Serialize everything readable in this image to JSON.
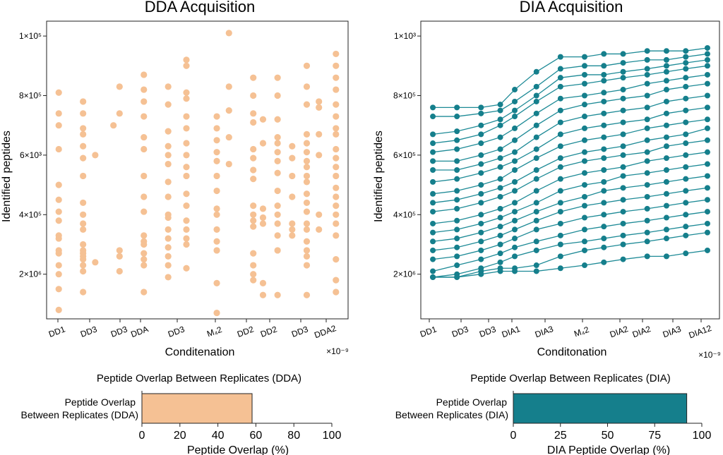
{
  "colors": {
    "dda": "#f5c194",
    "dia": "#157f8c",
    "dia_line": "#1d8a96",
    "axis": "#222222"
  },
  "chart_data": [
    {
      "type": "scatter",
      "title": "DDA Acquisition",
      "xlabel": "Conditenation",
      "ylabel": "Identified peptides",
      "x_offset_label": "×10⁻⁹",
      "categories": [
        "DD1",
        "DD3",
        "DD3",
        "DDA",
        "DD3",
        "M₄2",
        "DD2",
        "DD2",
        "DD3",
        "DDA2"
      ],
      "ytick_labels": [
        "2×10⁶",
        "4×10⁵",
        "6×10³",
        "8×10⁵",
        "1×10⁵"
      ],
      "ytick_values": [
        2,
        4,
        6,
        8,
        10
      ],
      "ylim": [
        0.5,
        10.5
      ],
      "grid": false,
      "points": [
        [
          0.5,
          8.1
        ],
        [
          0.5,
          7.4
        ],
        [
          0.5,
          7.0
        ],
        [
          0.5,
          6.2
        ],
        [
          0.5,
          5.0
        ],
        [
          0.5,
          4.5
        ],
        [
          0.5,
          4.1
        ],
        [
          0.5,
          3.8
        ],
        [
          0.5,
          3.3
        ],
        [
          0.5,
          3.2
        ],
        [
          0.5,
          2.8
        ],
        [
          0.5,
          2.7
        ],
        [
          0.5,
          2.3
        ],
        [
          0.5,
          2.0
        ],
        [
          0.5,
          1.5
        ],
        [
          0.5,
          0.8
        ],
        [
          1.5,
          7.8
        ],
        [
          1.5,
          7.4
        ],
        [
          1.5,
          6.9
        ],
        [
          1.5,
          6.7
        ],
        [
          1.5,
          6.3
        ],
        [
          1.5,
          5.9
        ],
        [
          1.5,
          5.3
        ],
        [
          1.5,
          4.4
        ],
        [
          1.5,
          4.0
        ],
        [
          1.5,
          3.7
        ],
        [
          1.5,
          3.5
        ],
        [
          1.5,
          3.0
        ],
        [
          1.5,
          2.8
        ],
        [
          1.5,
          2.7
        ],
        [
          1.5,
          2.6
        ],
        [
          1.5,
          2.5
        ],
        [
          1.5,
          2.3
        ],
        [
          1.5,
          2.1
        ],
        [
          1.5,
          1.4
        ],
        [
          2.0,
          6.0
        ],
        [
          2.0,
          2.4
        ],
        [
          2.75,
          7.0
        ],
        [
          3.0,
          8.3
        ],
        [
          3.0,
          7.4
        ],
        [
          3.0,
          2.8
        ],
        [
          3.0,
          2.6
        ],
        [
          3.0,
          2.1
        ],
        [
          4.0,
          8.7
        ],
        [
          4.0,
          8.2
        ],
        [
          4.0,
          7.8
        ],
        [
          4.0,
          7.3
        ],
        [
          4.0,
          6.6
        ],
        [
          4.0,
          6.2
        ],
        [
          4.0,
          5.3
        ],
        [
          4.0,
          4.6
        ],
        [
          4.0,
          4.1
        ],
        [
          4.0,
          3.3
        ],
        [
          4.0,
          3.1
        ],
        [
          4.0,
          3.0
        ],
        [
          4.0,
          2.7
        ],
        [
          4.0,
          2.5
        ],
        [
          4.0,
          2.3
        ],
        [
          4.0,
          1.4
        ],
        [
          5.0,
          8.3
        ],
        [
          5.0,
          7.7
        ],
        [
          5.0,
          6.8
        ],
        [
          5.0,
          6.3
        ],
        [
          5.0,
          6.0
        ],
        [
          5.0,
          5.7
        ],
        [
          5.0,
          5.1
        ],
        [
          5.0,
          4.6
        ],
        [
          5.0,
          4.0
        ],
        [
          5.0,
          3.9
        ],
        [
          5.0,
          3.5
        ],
        [
          5.0,
          3.2
        ],
        [
          5.0,
          2.9
        ],
        [
          5.0,
          2.6
        ],
        [
          5.0,
          2.3
        ],
        [
          5.0,
          1.9
        ],
        [
          5.75,
          9.2
        ],
        [
          5.75,
          9.0
        ],
        [
          5.75,
          8.1
        ],
        [
          5.75,
          7.9
        ],
        [
          5.75,
          7.3
        ],
        [
          5.75,
          6.9
        ],
        [
          5.75,
          6.4
        ],
        [
          5.75,
          6.0
        ],
        [
          5.75,
          5.6
        ],
        [
          5.75,
          5.3
        ],
        [
          5.75,
          4.7
        ],
        [
          5.75,
          4.3
        ],
        [
          5.75,
          3.8
        ],
        [
          5.75,
          3.5
        ],
        [
          5.75,
          3.2
        ],
        [
          5.75,
          3.0
        ],
        [
          5.75,
          2.2
        ],
        [
          7.0,
          7.3
        ],
        [
          7.0,
          6.9
        ],
        [
          7.0,
          6.5
        ],
        [
          7.0,
          6.1
        ],
        [
          7.0,
          5.8
        ],
        [
          7.0,
          5.3
        ],
        [
          7.0,
          4.8
        ],
        [
          7.0,
          4.2
        ],
        [
          7.0,
          4.0
        ],
        [
          7.0,
          3.5
        ],
        [
          7.0,
          3.1
        ],
        [
          7.0,
          2.8
        ],
        [
          7.0,
          1.7
        ],
        [
          7.0,
          0.7
        ],
        [
          7.5,
          10.1
        ],
        [
          7.5,
          8.3
        ],
        [
          7.5,
          7.5
        ],
        [
          7.5,
          6.6
        ],
        [
          7.5,
          5.7
        ],
        [
          8.5,
          8.6
        ],
        [
          8.5,
          8.0
        ],
        [
          8.5,
          7.4
        ],
        [
          8.5,
          7.1
        ],
        [
          8.5,
          6.2
        ],
        [
          8.5,
          5.9
        ],
        [
          8.5,
          5.5
        ],
        [
          8.5,
          5.2
        ],
        [
          8.5,
          4.3
        ],
        [
          8.5,
          4.0
        ],
        [
          8.5,
          3.8
        ],
        [
          8.5,
          3.6
        ],
        [
          8.5,
          2.7
        ],
        [
          8.5,
          2.3
        ],
        [
          8.5,
          2.0
        ],
        [
          8.5,
          1.8
        ],
        [
          8.9,
          7.2
        ],
        [
          8.9,
          6.4
        ],
        [
          8.9,
          4.2
        ],
        [
          8.9,
          3.9
        ],
        [
          8.9,
          3.7
        ],
        [
          8.9,
          1.7
        ],
        [
          8.9,
          1.3
        ],
        [
          9.5,
          8.6
        ],
        [
          9.5,
          8.0
        ],
        [
          9.5,
          7.2
        ],
        [
          9.5,
          6.6
        ],
        [
          9.5,
          6.4
        ],
        [
          9.5,
          6.1
        ],
        [
          9.5,
          5.8
        ],
        [
          9.5,
          5.4
        ],
        [
          9.5,
          4.8
        ],
        [
          9.5,
          4.3
        ],
        [
          9.5,
          4.0
        ],
        [
          9.5,
          3.7
        ],
        [
          9.5,
          3.3
        ],
        [
          9.5,
          2.8
        ],
        [
          9.5,
          1.3
        ],
        [
          10.1,
          6.3
        ],
        [
          10.1,
          5.9
        ],
        [
          10.1,
          5.3
        ],
        [
          10.1,
          4.6
        ],
        [
          10.1,
          3.7
        ],
        [
          10.1,
          3.5
        ],
        [
          10.1,
          3.3
        ],
        [
          10.7,
          9.0
        ],
        [
          10.7,
          8.3
        ],
        [
          10.7,
          7.7
        ],
        [
          10.7,
          6.7
        ],
        [
          10.7,
          6.4
        ],
        [
          10.7,
          6.1
        ],
        [
          10.7,
          5.8
        ],
        [
          10.7,
          5.6
        ],
        [
          10.7,
          5.3
        ],
        [
          10.7,
          5.1
        ],
        [
          10.7,
          4.7
        ],
        [
          10.7,
          4.4
        ],
        [
          10.7,
          4.1
        ],
        [
          10.7,
          3.7
        ],
        [
          10.7,
          3.5
        ],
        [
          10.7,
          3.1
        ],
        [
          10.7,
          2.8
        ],
        [
          10.7,
          2.6
        ],
        [
          10.7,
          2.3
        ],
        [
          10.7,
          1.3
        ],
        [
          11.2,
          7.8
        ],
        [
          11.2,
          7.6
        ],
        [
          11.2,
          6.7
        ],
        [
          11.2,
          6.0
        ],
        [
          11.2,
          4.0
        ],
        [
          11.2,
          3.5
        ],
        [
          11.9,
          9.4
        ],
        [
          11.9,
          9.0
        ],
        [
          11.9,
          8.6
        ],
        [
          11.9,
          8.2
        ],
        [
          11.9,
          7.7
        ],
        [
          11.9,
          7.3
        ],
        [
          11.9,
          6.9
        ],
        [
          11.9,
          6.7
        ],
        [
          11.9,
          6.2
        ],
        [
          11.9,
          5.9
        ],
        [
          11.9,
          5.6
        ],
        [
          11.9,
          5.3
        ],
        [
          11.9,
          4.9
        ],
        [
          11.9,
          4.6
        ],
        [
          11.9,
          4.3
        ],
        [
          11.9,
          4.0
        ],
        [
          11.9,
          3.7
        ],
        [
          11.9,
          3.3
        ],
        [
          11.9,
          2.5
        ],
        [
          11.9,
          1.8
        ],
        [
          11.9,
          1.4
        ]
      ]
    },
    {
      "type": "line",
      "title": "DIA Acquisition",
      "xlabel": "Conditonation",
      "ylabel": "Identified peptides",
      "x_offset_label": "×10⁻⁹",
      "categories": [
        "DD1",
        "DD3",
        "DD3",
        "DIA1",
        "DIA3",
        "M₄2",
        "DIA2",
        "DIA2",
        "DIA3",
        "DIA12"
      ],
      "ytick_labels": [
        "2×10⁶",
        "4×10⁵",
        "6×10⁵",
        "8×10⁵",
        "1×10³"
      ],
      "ytick_values": [
        2,
        4,
        6,
        8,
        10
      ],
      "ylim": [
        0.5,
        10.5
      ],
      "grid": false,
      "x": [
        0.5,
        1.5,
        2.5,
        3.3,
        3.9,
        4.8,
        5.8,
        6.8,
        7.6,
        8.4,
        9.4,
        10.2,
        11.0,
        11.9
      ],
      "series": [
        {
          "values": [
            7.6,
            7.6,
            7.6,
            7.7,
            8.2,
            8.8,
            9.3,
            9.3,
            9.4,
            9.4,
            9.5,
            9.5,
            9.5,
            9.6
          ]
        },
        {
          "values": [
            7.3,
            7.3,
            7.4,
            7.5,
            7.8,
            8.3,
            8.9,
            9.0,
            9.0,
            9.1,
            9.2,
            9.2,
            9.3,
            9.4
          ]
        },
        {
          "values": [
            6.7,
            6.8,
            7.0,
            7.2,
            7.5,
            8.0,
            8.6,
            8.7,
            8.7,
            8.8,
            8.9,
            9.0,
            9.1,
            9.2
          ]
        },
        {
          "values": [
            6.4,
            6.5,
            6.7,
            7.0,
            7.3,
            7.8,
            8.3,
            8.4,
            8.5,
            8.6,
            8.7,
            8.8,
            8.9,
            9.0
          ]
        },
        {
          "values": [
            6.1,
            6.2,
            6.4,
            6.6,
            6.9,
            7.4,
            7.9,
            8.0,
            8.1,
            8.2,
            8.4,
            8.5,
            8.6,
            8.7
          ]
        },
        {
          "values": [
            5.8,
            5.8,
            6.0,
            6.2,
            6.5,
            7.0,
            7.5,
            7.7,
            7.8,
            7.9,
            8.0,
            8.2,
            8.3,
            8.4
          ]
        },
        {
          "values": [
            5.5,
            5.5,
            5.7,
            5.9,
            6.1,
            6.6,
            7.1,
            7.3,
            7.4,
            7.5,
            7.6,
            7.8,
            7.9,
            8.0
          ]
        },
        {
          "values": [
            5.1,
            5.2,
            5.4,
            5.6,
            5.8,
            6.2,
            6.7,
            6.9,
            7.0,
            7.1,
            7.2,
            7.4,
            7.5,
            7.6
          ]
        },
        {
          "values": [
            4.7,
            4.8,
            5.0,
            5.2,
            5.5,
            5.9,
            6.3,
            6.5,
            6.6,
            6.7,
            6.9,
            7.0,
            7.1,
            7.2
          ]
        },
        {
          "values": [
            4.4,
            4.5,
            4.7,
            4.9,
            5.1,
            5.5,
            5.9,
            6.1,
            6.2,
            6.3,
            6.5,
            6.6,
            6.7,
            6.9
          ]
        },
        {
          "values": [
            4.1,
            4.2,
            4.4,
            4.6,
            4.8,
            5.2,
            5.6,
            5.8,
            5.9,
            6.0,
            6.1,
            6.3,
            6.4,
            6.5
          ]
        },
        {
          "values": [
            3.7,
            3.8,
            4.0,
            4.2,
            4.4,
            4.8,
            5.2,
            5.4,
            5.5,
            5.6,
            5.8,
            5.9,
            6.0,
            6.1
          ]
        },
        {
          "values": [
            3.4,
            3.5,
            3.7,
            3.9,
            4.1,
            4.4,
            4.8,
            5.0,
            5.1,
            5.3,
            5.4,
            5.5,
            5.6,
            5.7
          ]
        },
        {
          "values": [
            3.1,
            3.2,
            3.4,
            3.6,
            3.8,
            4.1,
            4.4,
            4.6,
            4.8,
            4.9,
            5.0,
            5.1,
            5.2,
            5.3
          ]
        },
        {
          "values": [
            2.8,
            2.9,
            3.1,
            3.3,
            3.5,
            3.8,
            4.1,
            4.3,
            4.4,
            4.5,
            4.6,
            4.7,
            4.8,
            4.9
          ]
        },
        {
          "values": [
            2.5,
            2.6,
            2.8,
            3.0,
            3.2,
            3.5,
            3.7,
            3.9,
            4.0,
            4.1,
            4.2,
            4.3,
            4.4,
            4.5
          ]
        },
        {
          "values": [
            2.1,
            2.3,
            2.5,
            2.7,
            2.9,
            3.1,
            3.3,
            3.5,
            3.6,
            3.7,
            3.8,
            3.9,
            4.0,
            4.1
          ]
        },
        {
          "values": [
            1.9,
            2.0,
            2.2,
            2.4,
            2.6,
            2.8,
            3.0,
            3.1,
            3.2,
            3.3,
            3.4,
            3.5,
            3.6,
            3.7
          ]
        },
        {
          "values": [
            1.9,
            1.9,
            2.1,
            2.2,
            2.2,
            2.3,
            2.6,
            2.8,
            2.9,
            3.0,
            3.1,
            3.2,
            3.3,
            3.4
          ]
        },
        {
          "values": [
            1.9,
            1.9,
            2.0,
            2.1,
            2.1,
            2.1,
            2.2,
            2.3,
            2.4,
            2.5,
            2.6,
            2.6,
            2.7,
            2.8
          ]
        }
      ]
    },
    {
      "type": "bar",
      "orientation": "horizontal",
      "title": "Peptide Overlap Between Replicates (DDA)",
      "categories": [
        "Peptide Overlap\nBetween Replicates (DDA)"
      ],
      "category_lines": [
        "Peptide Overlap",
        "Between Replicates (DDA)"
      ],
      "values": [
        58
      ],
      "xlabel": "Peptide Overlap (%)",
      "xticks": [
        0,
        20,
        40,
        60,
        80,
        100
      ],
      "xlim": [
        0,
        100
      ]
    },
    {
      "type": "bar",
      "orientation": "horizontal",
      "title": "Peptide Overlap Between Replicates (DIA)",
      "categories": [
        "Peptide Overlap\nBetween Replicates (DIA)"
      ],
      "category_lines": [
        "Peptide Overlap",
        "Between Replicates (DIA)"
      ],
      "values": [
        92
      ],
      "xlabel": "DIA Peptide Overlap (%)",
      "xticks": [
        0,
        25,
        50,
        75,
        100
      ],
      "xlim": [
        0,
        100
      ]
    }
  ]
}
